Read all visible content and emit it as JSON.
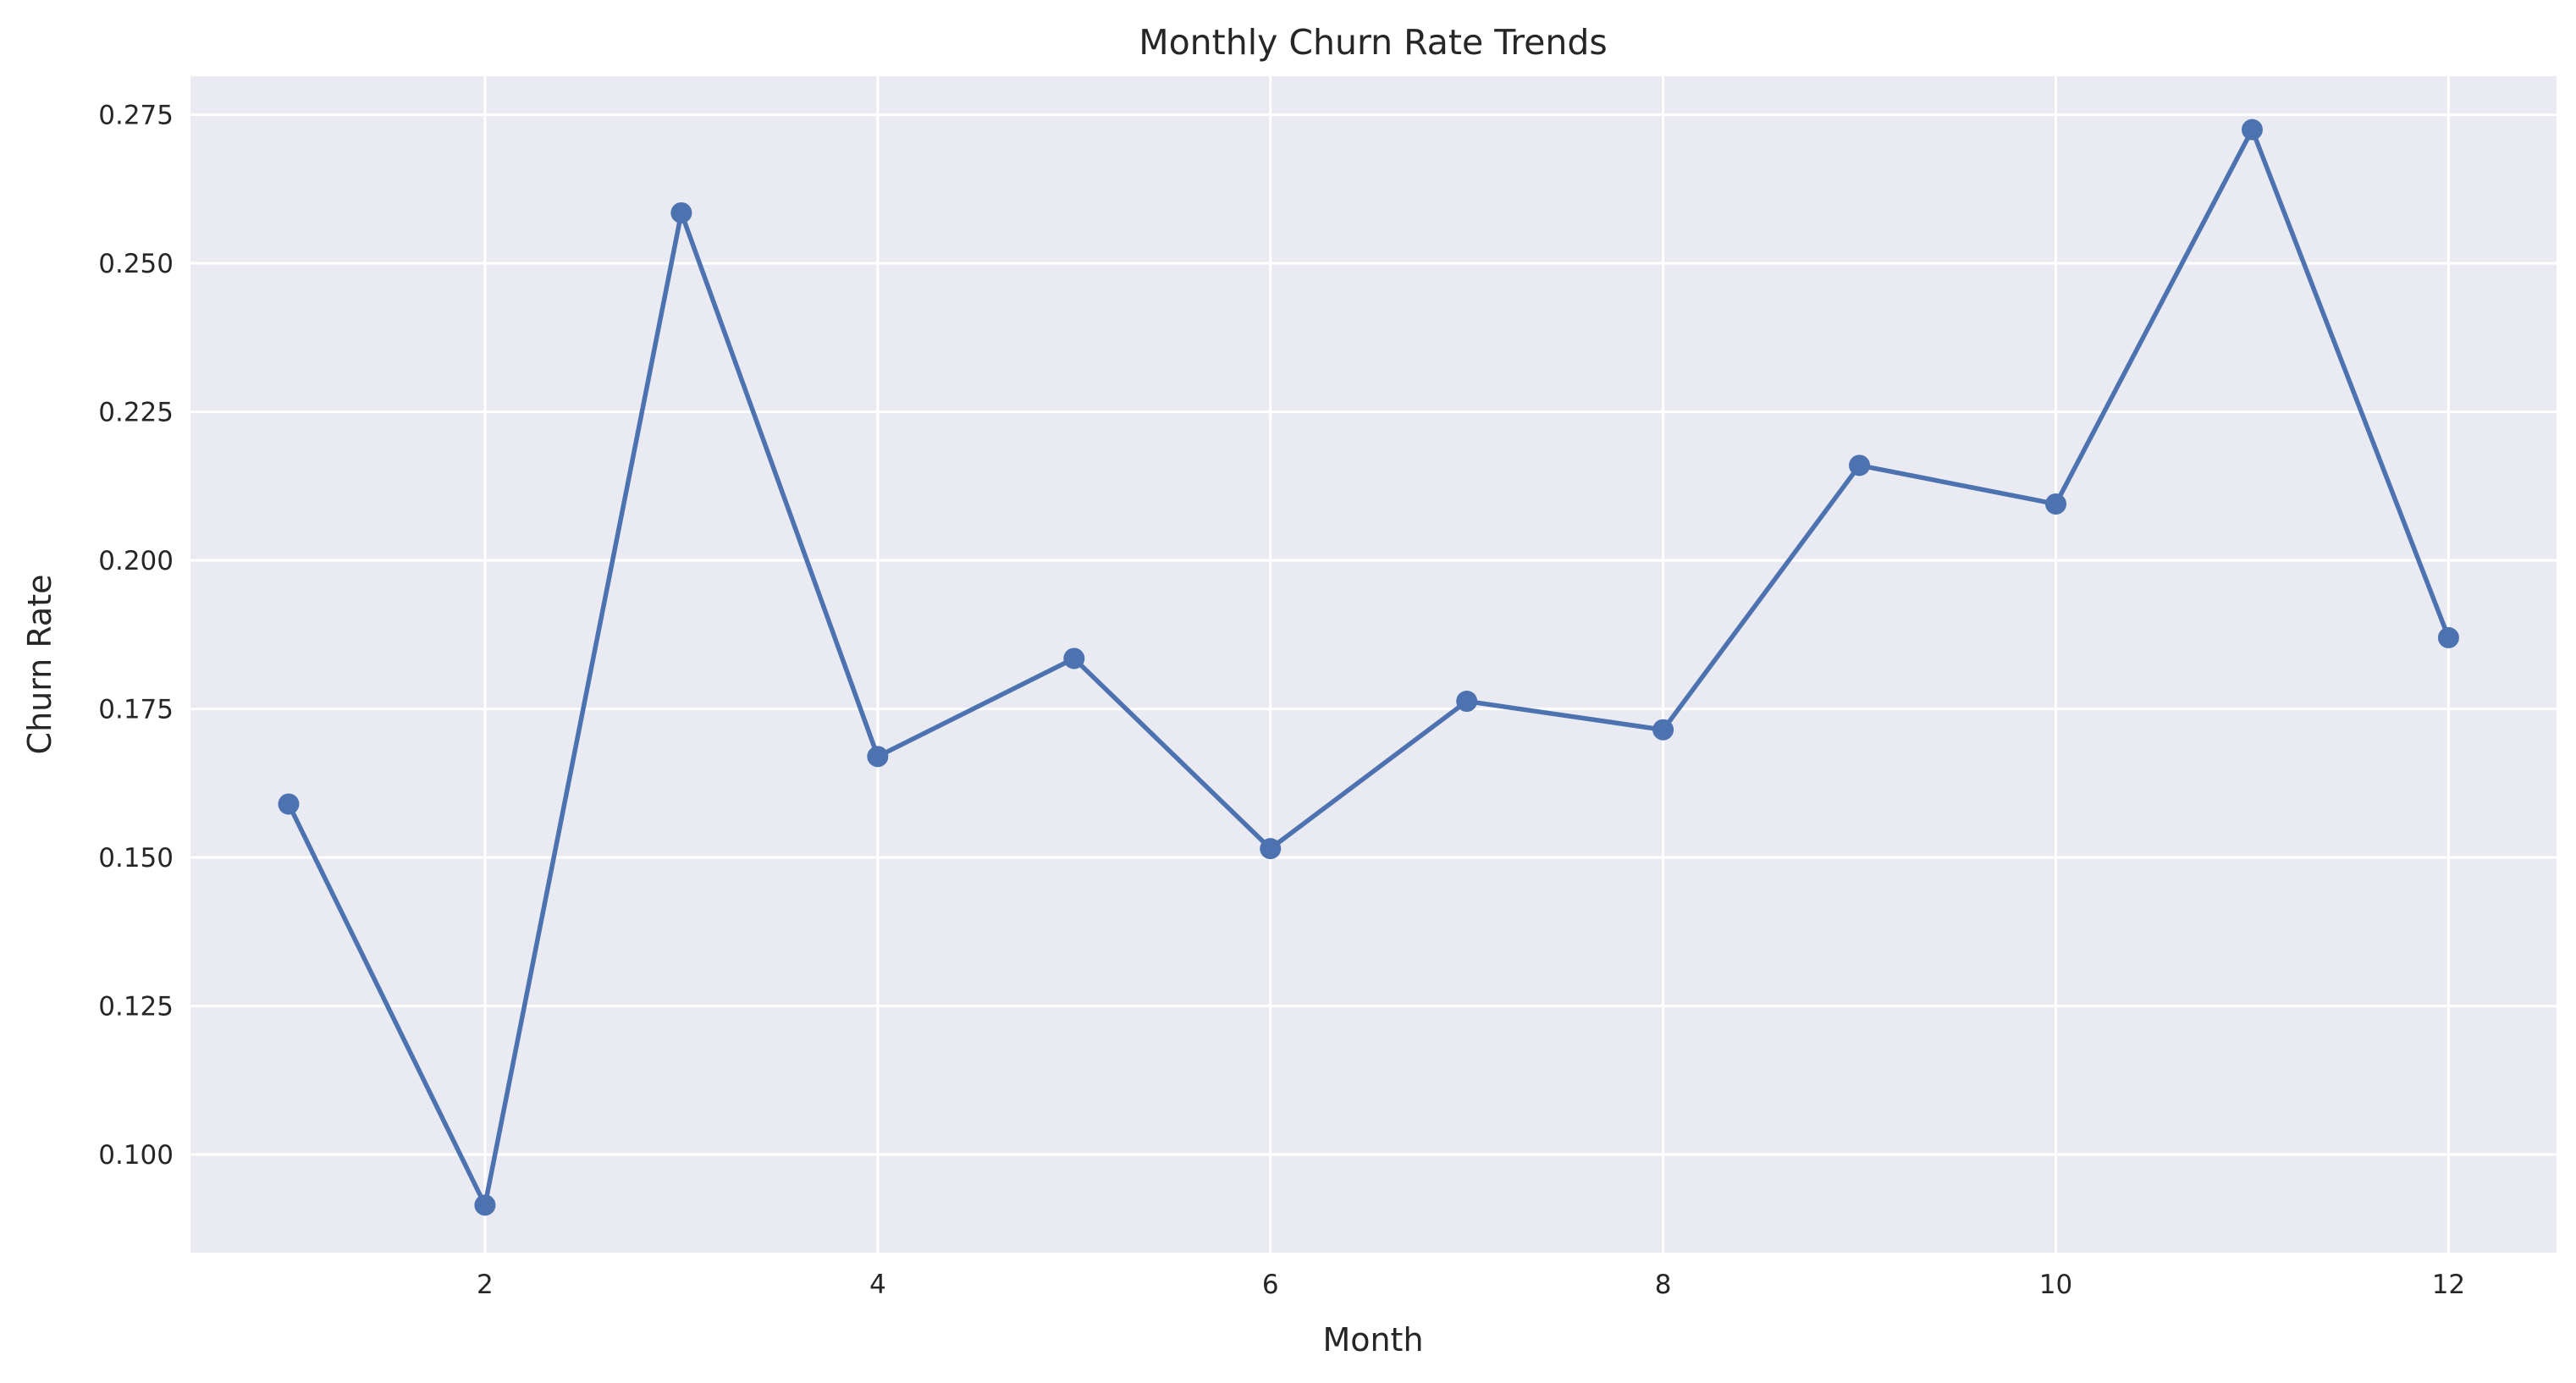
{
  "chart_data": {
    "type": "line",
    "title": "Monthly Churn Rate Trends",
    "xlabel": "Month",
    "ylabel": "Churn Rate",
    "x": [
      1,
      2,
      3,
      4,
      5,
      6,
      7,
      8,
      9,
      10,
      11,
      12
    ],
    "series": [
      {
        "values": [
          0.159,
          0.0915,
          0.2585,
          0.167,
          0.1835,
          0.1515,
          0.1763,
          0.1715,
          0.216,
          0.2095,
          0.2725,
          0.187
        ],
        "color": "#4c72b0",
        "marker": "circle"
      }
    ],
    "xlim": [
      0.5,
      12.55
    ],
    "ylim": [
      0.0835,
      0.2815
    ],
    "xticks": [
      2,
      4,
      6,
      8,
      10,
      12
    ],
    "yticks": [
      0.1,
      0.125,
      0.15,
      0.175,
      0.2,
      0.225,
      0.25,
      0.275
    ],
    "ytick_labels": [
      "0.100",
      "0.125",
      "0.150",
      "0.175",
      "0.200",
      "0.225",
      "0.250",
      "0.275"
    ],
    "xtick_labels": [
      "2",
      "4",
      "6",
      "8",
      "10",
      "12"
    ],
    "grid": true,
    "legend": "none",
    "background_color": "#eaeaf2",
    "grid_color": "#ffffff"
  }
}
